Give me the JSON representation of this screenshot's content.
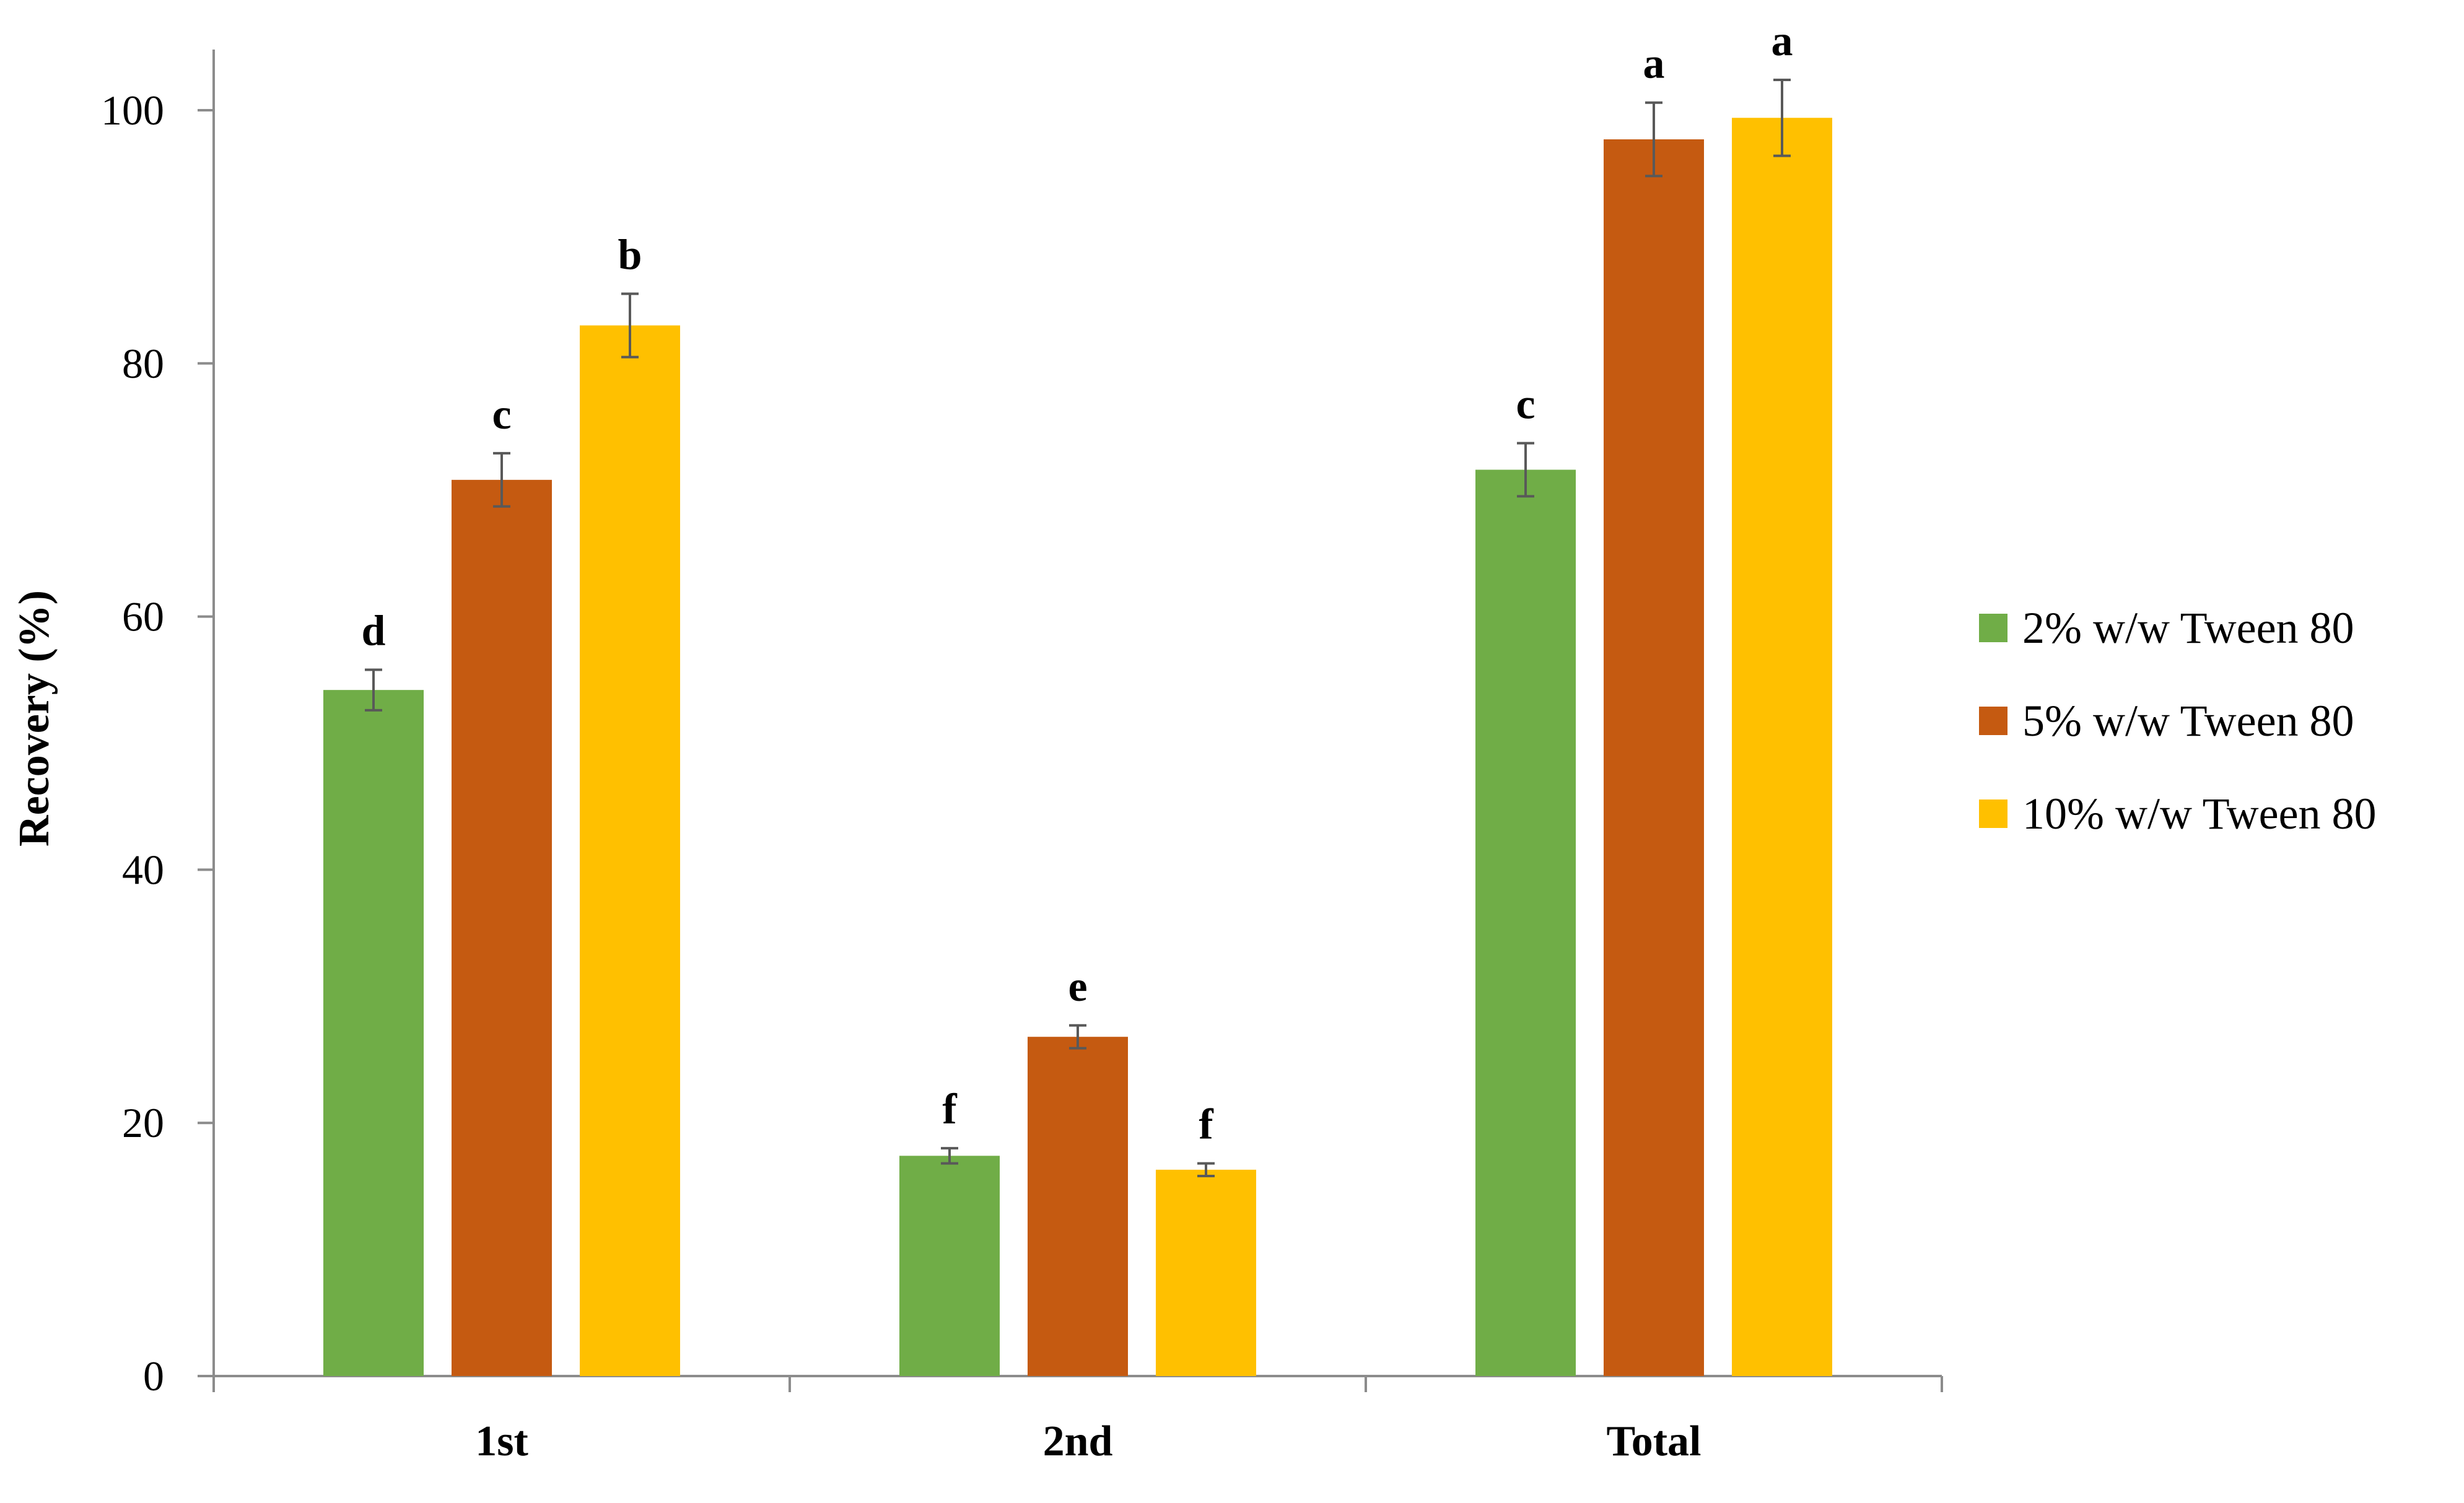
{
  "chart_data": {
    "type": "bar",
    "categories": [
      "1st",
      "2nd",
      "Total"
    ],
    "series": [
      {
        "name": "2% w/w Tween 80",
        "color": "#70AD47",
        "values": [
          54.2,
          17.4,
          71.6
        ],
        "errors": [
          1.6,
          0.6,
          2.1
        ],
        "letters": [
          "d",
          "f",
          "c"
        ]
      },
      {
        "name": "5% w/w Tween 80",
        "color": "#C55A11",
        "values": [
          70.8,
          26.8,
          97.7
        ],
        "errors": [
          2.1,
          0.9,
          2.9
        ],
        "letters": [
          "c",
          "e",
          "a"
        ]
      },
      {
        "name": "10% w/w Tween 80",
        "color": "#FFC000",
        "values": [
          83.0,
          16.3,
          99.4
        ],
        "errors": [
          2.5,
          0.5,
          3.0
        ],
        "letters": [
          "b",
          "f",
          "a"
        ]
      }
    ],
    "title": "",
    "xlabel": "",
    "ylabel": "Recovery (%)",
    "ylim": [
      0,
      100
    ],
    "yticks": [
      0,
      20,
      40,
      60,
      80,
      100
    ],
    "grid": false,
    "legend_position": "right",
    "error_bar_color": "#595959",
    "axis_color": "#8C8C8C"
  }
}
